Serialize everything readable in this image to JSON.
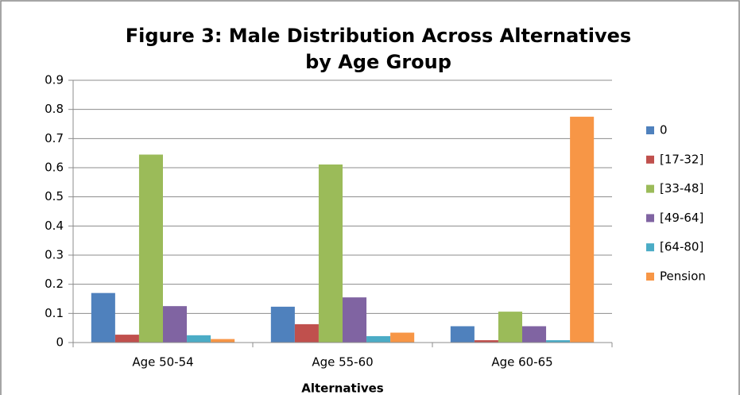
{
  "chart_data": {
    "type": "bar",
    "title": [
      "Figure 3: Male Distribution Across Alternatives",
      "by Age Group"
    ],
    "x_label": "Alternatives",
    "categories": [
      "Age 50-54",
      "Age 55-60",
      "Age 60-65"
    ],
    "series": [
      {
        "name": "0",
        "color": "#4f81bd",
        "values": [
          0.17,
          0.123,
          0.056
        ]
      },
      {
        "name": "[17-32]",
        "color": "#c0504d",
        "values": [
          0.027,
          0.063,
          0.008
        ]
      },
      {
        "name": "[33-48]",
        "color": "#9bbb59",
        "values": [
          0.645,
          0.611,
          0.106
        ]
      },
      {
        "name": "[49-64]",
        "color": "#8064a2",
        "values": [
          0.125,
          0.155,
          0.056
        ]
      },
      {
        "name": "[64-80]",
        "color": "#4bacc6",
        "values": [
          0.025,
          0.022,
          0.008
        ]
      },
      {
        "name": "Pension",
        "color": "#f79646",
        "values": [
          0.012,
          0.034,
          0.775
        ]
      }
    ],
    "ylim": [
      0,
      0.9
    ],
    "yticks": [
      0,
      0.1,
      0.2,
      0.3,
      0.4,
      0.5,
      0.6,
      0.7,
      0.8,
      0.9
    ],
    "grid": true,
    "legend": "right"
  }
}
